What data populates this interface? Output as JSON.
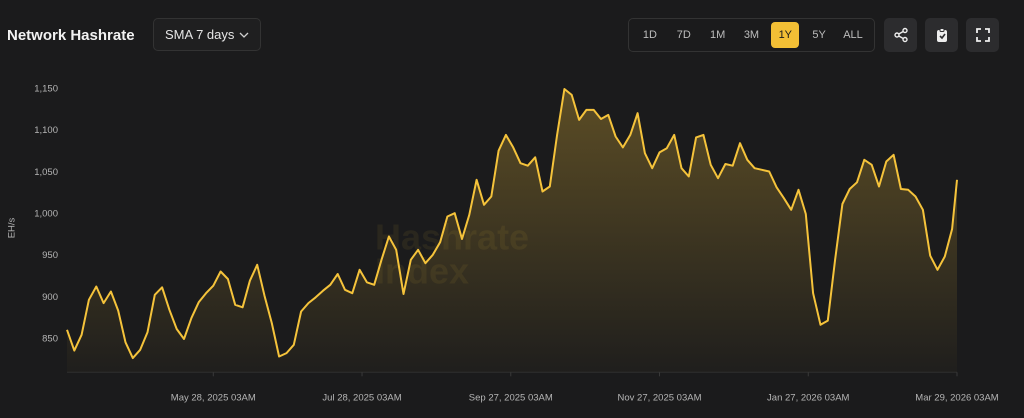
{
  "toolbar": {
    "sma": "SMA 7 days",
    "ranges": [
      "1D",
      "7D",
      "1M",
      "3M",
      "1Y",
      "5Y",
      "ALL"
    ],
    "active_range": "1Y"
  },
  "chart_data": {
    "type": "line",
    "title": "Network Hashrate",
    "ylabel": "EH/s",
    "watermark": [
      "Hashrate",
      "Index"
    ],
    "color": "#f5c33b",
    "x": [
      "2025-03-29",
      "2025-04-01",
      "2025-04-04",
      "2025-04-07",
      "2025-04-10",
      "2025-04-13",
      "2025-04-16",
      "2025-04-19",
      "2025-04-22",
      "2025-04-25",
      "2025-04-28",
      "2025-05-01",
      "2025-05-04",
      "2025-05-07",
      "2025-05-10",
      "2025-05-13",
      "2025-05-16",
      "2025-05-19",
      "2025-05-22",
      "2025-05-25",
      "2025-05-28",
      "2025-05-31",
      "2025-06-03",
      "2025-06-06",
      "2025-06-09",
      "2025-06-12",
      "2025-06-15",
      "2025-06-18",
      "2025-06-21",
      "2025-06-24",
      "2025-06-27",
      "2025-06-30",
      "2025-07-03",
      "2025-07-06",
      "2025-07-09",
      "2025-07-12",
      "2025-07-15",
      "2025-07-18",
      "2025-07-21",
      "2025-07-24",
      "2025-07-27",
      "2025-07-30",
      "2025-08-02",
      "2025-08-05",
      "2025-08-08",
      "2025-08-11",
      "2025-08-14",
      "2025-08-17",
      "2025-08-20",
      "2025-08-23",
      "2025-08-26",
      "2025-08-29",
      "2025-09-01",
      "2025-09-04",
      "2025-09-07",
      "2025-09-10",
      "2025-09-13",
      "2025-09-16",
      "2025-09-19",
      "2025-09-22",
      "2025-09-25",
      "2025-09-28",
      "2025-10-01",
      "2025-10-04",
      "2025-10-07",
      "2025-10-10",
      "2025-10-13",
      "2025-10-16",
      "2025-10-19",
      "2025-10-22",
      "2025-10-25",
      "2025-10-28",
      "2025-10-31",
      "2025-11-03",
      "2025-11-06",
      "2025-11-09",
      "2025-11-12",
      "2025-11-15",
      "2025-11-18",
      "2025-11-21",
      "2025-11-24",
      "2025-11-27",
      "2025-11-30",
      "2025-12-03",
      "2025-12-06",
      "2025-12-09",
      "2025-12-12",
      "2025-12-15",
      "2025-12-18",
      "2025-12-21",
      "2025-12-24",
      "2025-12-27",
      "2025-12-30",
      "2026-01-02",
      "2026-01-05",
      "2026-01-08",
      "2026-01-11",
      "2026-01-14",
      "2026-01-17",
      "2026-01-20",
      "2026-01-23",
      "2026-01-26",
      "2026-01-29",
      "2026-02-01",
      "2026-02-04",
      "2026-02-07",
      "2026-02-10",
      "2026-02-13",
      "2026-02-16",
      "2026-02-19",
      "2026-02-22",
      "2026-02-25",
      "2026-02-28",
      "2026-03-03",
      "2026-03-06",
      "2026-03-09",
      "2026-03-12",
      "2026-03-15",
      "2026-03-18",
      "2026-03-21",
      "2026-03-24",
      "2026-03-27",
      "2026-03-29"
    ],
    "values": [
      861,
      836,
      855,
      897,
      913,
      893,
      907,
      884,
      846,
      827,
      837,
      858,
      903,
      912,
      885,
      862,
      850,
      875,
      894,
      905,
      914,
      931,
      922,
      891,
      888,
      920,
      939,
      902,
      869,
      829,
      833,
      843,
      883,
      893,
      900,
      908,
      915,
      928,
      909,
      905,
      933,
      918,
      915,
      945,
      973,
      957,
      904,
      945,
      957,
      941,
      951,
      966,
      997,
      1001,
      970,
      999,
      1041,
      1011,
      1021,
      1076,
      1095,
      1080,
      1061,
      1058,
      1068,
      1027,
      1033,
      1095,
      1150,
      1143,
      1113,
      1125,
      1125,
      1114,
      1119,
      1093,
      1080,
      1095,
      1121,
      1073,
      1055,
      1074,
      1079,
      1095,
      1055,
      1045,
      1092,
      1095,
      1059,
      1043,
      1060,
      1058,
      1085,
      1065,
      1055,
      1053,
      1051,
      1032,
      1019,
      1005,
      1029,
      1000,
      905,
      867,
      872,
      945,
      1012,
      1030,
      1038,
      1065,
      1059,
      1033,
      1063,
      1071,
      1030,
      1029,
      1021,
      1005,
      950,
      933,
      949,
      982,
      1041
    ],
    "xlim": [
      "2025-03-29",
      "2026-03-29"
    ],
    "xticks": [
      {
        "value": "2025-05-28",
        "label": "May 28, 2025 03AM"
      },
      {
        "value": "2025-07-28",
        "label": "Jul 28, 2025 03AM"
      },
      {
        "value": "2025-09-27",
        "label": "Sep 27, 2025 03AM"
      },
      {
        "value": "2025-11-27",
        "label": "Nov 27, 2025 03AM"
      },
      {
        "value": "2026-01-27",
        "label": "Jan 27, 2026 03AM"
      },
      {
        "value": "2026-03-29",
        "label": "Mar 29, 2026 03AM"
      }
    ],
    "ylim": [
      810,
      1160
    ],
    "yticks": [
      850,
      900,
      950,
      {
        "value": 1000,
        "label": "1,000"
      },
      {
        "value": 1050,
        "label": "1,050"
      },
      {
        "value": 1100,
        "label": "1,100"
      },
      {
        "value": 1150,
        "label": "1,150"
      }
    ],
    "grid": false
  }
}
